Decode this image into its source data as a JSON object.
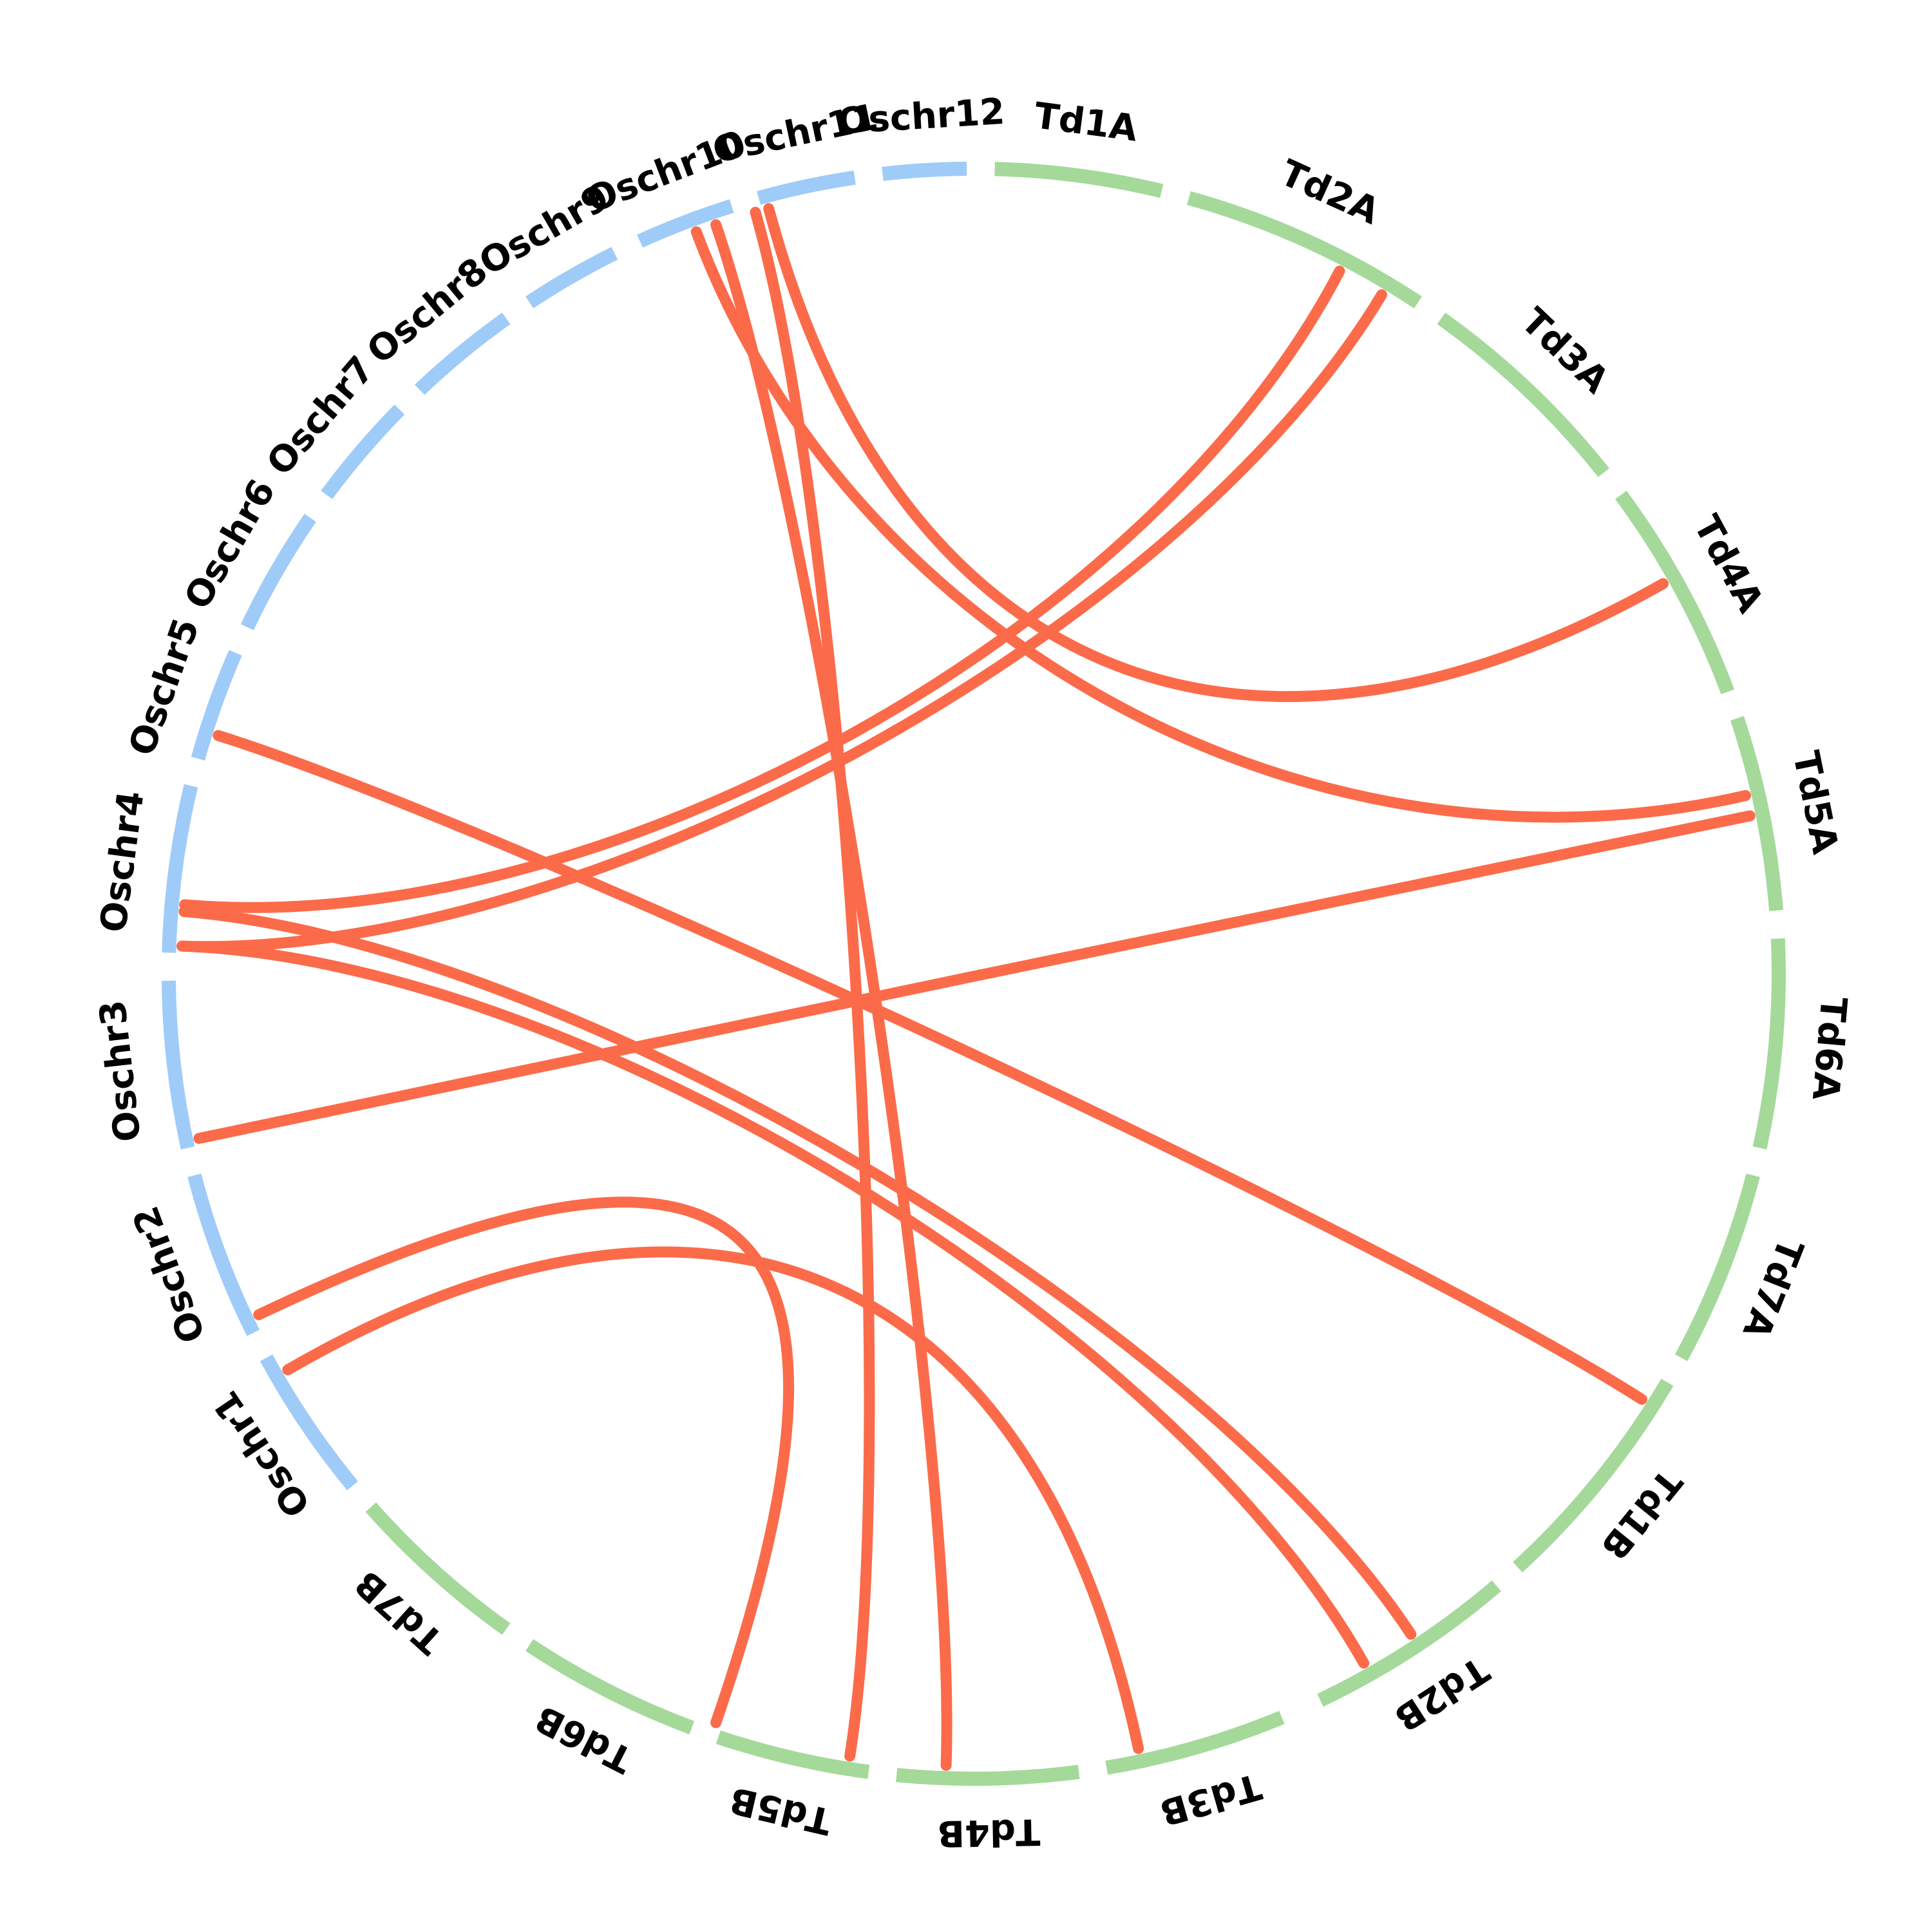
{
  "colors": {
    "rice_segment": "#9fcbf8",
    "wheat_segment": "#a4d99a",
    "link": "#fb6b4a",
    "label": "#000000"
  },
  "segments": [
    {
      "id": "Td1A",
      "label": "Td1A",
      "group": "wheat",
      "start": 0,
      "end": 12
    },
    {
      "id": "Td2A",
      "label": "Td2A",
      "group": "wheat",
      "start": 14,
      "end": 32
    },
    {
      "id": "Td3A",
      "label": "Td3A",
      "group": "wheat",
      "start": 34,
      "end": 50
    },
    {
      "id": "Td4A",
      "label": "Td4A",
      "group": "wheat",
      "start": 52,
      "end": 68
    },
    {
      "id": "Td5A",
      "label": "Td5A",
      "group": "wheat",
      "start": 70,
      "end": 84
    },
    {
      "id": "Td6A",
      "label": "Td6A",
      "group": "wheat",
      "start": 86,
      "end": 101
    },
    {
      "id": "Td7A",
      "label": "Td7A",
      "group": "wheat",
      "start": 103,
      "end": 117
    },
    {
      "id": "Td1B",
      "label": "Td1B",
      "group": "wheat",
      "start": 119,
      "end": 136
    },
    {
      "id": "Td2B",
      "label": "Td2B",
      "group": "wheat",
      "start": 138,
      "end": 153
    },
    {
      "id": "Td3B",
      "label": "Td3B",
      "group": "wheat",
      "start": 156,
      "end": 169
    },
    {
      "id": "Td4B",
      "label": "Td4B",
      "group": "wheat",
      "start": 171,
      "end": 184
    },
    {
      "id": "Td5B",
      "label": "Td5B",
      "group": "wheat",
      "start": 186,
      "end": 197
    },
    {
      "id": "Td6B",
      "label": "Td6B",
      "group": "wheat",
      "start": 199,
      "end": 212
    },
    {
      "id": "Td7B",
      "label": "Td7B",
      "group": "wheat",
      "start": 214,
      "end": 227
    },
    {
      "id": "Oschr1",
      "label": "Oschr1",
      "group": "rice",
      "start": 229,
      "end": 240
    },
    {
      "id": "Oschr2",
      "label": "Oschr2",
      "group": "rice",
      "start": 242,
      "end": 254
    },
    {
      "id": "Oschr3",
      "label": "Oschr3",
      "group": "rice",
      "start": 256,
      "end": 268
    },
    {
      "id": "Oschr4",
      "label": "Oschr4",
      "group": "rice",
      "start": 270,
      "end": 282
    },
    {
      "id": "Oschr5",
      "label": "Oschr5",
      "group": "rice",
      "start": 284,
      "end": 292
    },
    {
      "id": "Oschr6",
      "label": "Oschr6",
      "group": "rice",
      "start": 294,
      "end": 303
    },
    {
      "id": "Oschr7",
      "label": "Oschr7",
      "group": "rice",
      "start": 305,
      "end": 313
    },
    {
      "id": "Oschr8",
      "label": "Oschr8",
      "group": "rice",
      "start": 315,
      "end": 323
    },
    {
      "id": "Oschr9",
      "label": "Oschr9",
      "group": "rice",
      "start": 325,
      "end": 332
    },
    {
      "id": "Oschr10",
      "label": "Oschr10",
      "group": "rice",
      "start": 334,
      "end": 341
    },
    {
      "id": "Oschr11",
      "label": "Oschr11",
      "group": "rice",
      "start": 343,
      "end": 350
    },
    {
      "id": "Oschr12",
      "label": "Oschr12",
      "group": "rice",
      "start": 352,
      "end": 358
    }
  ],
  "links": [
    {
      "from": 339.5,
      "to": 180.5
    },
    {
      "from": 342.5,
      "to": 187.5
    },
    {
      "from": 338.0,
      "to": 75.5
    },
    {
      "from": 343.5,
      "to": 59.0
    },
    {
      "from": 29.5,
      "to": 270.5
    },
    {
      "from": 26.0,
      "to": 273.5
    },
    {
      "from": 77.0,
      "to": 256.5
    },
    {
      "from": 286.0,
      "to": 121.0
    },
    {
      "from": 273.0,
      "to": 145.0
    },
    {
      "from": 270.5,
      "to": 149.0
    },
    {
      "from": 243.0,
      "to": 197.5
    },
    {
      "from": 238.5,
      "to": 166.5
    }
  ]
}
